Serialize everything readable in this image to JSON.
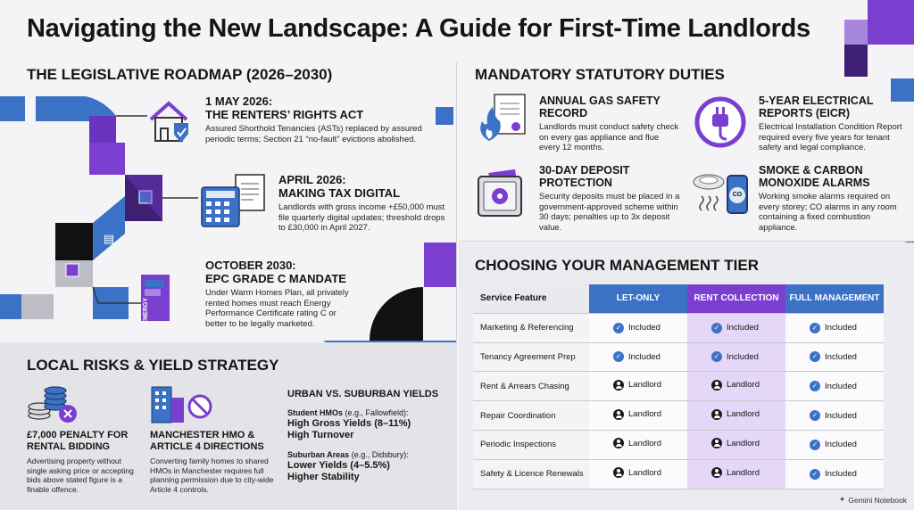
{
  "title": "Navigating the New Landscape: A Guide for First-Time Landlords",
  "roadmap": {
    "heading": "THE LEGISLATIVE ROADMAP (2026–2030)",
    "events": [
      {
        "title_line1": "1 MAY 2026:",
        "title_line2": "THE RENTERS’ RIGHTS ACT",
        "body": "Assured Shorthold Tenancies (ASTs) replaced by assured periodic terms; Section 21 “no-fault” evictions abolished.",
        "icon": "house-shield-icon"
      },
      {
        "title_line1": "APRIL 2026:",
        "title_line2": "MAKING TAX DIGITAL",
        "body": "Landlords with gross income +£50,000 must file quarterly digital updates; threshold drops to £30,000 in April 2027.",
        "icon": "calculator-document-icon"
      },
      {
        "title_line1": "OCTOBER 2030:",
        "title_line2": "EPC GRADE C MANDATE",
        "body": "Under Warm Homes Plan, all privately rented homes must reach Energy Performance Certificate rating C or better to be legally marketed.",
        "icon": "energy-meter-icon",
        "icon_label": "ENERGY"
      }
    ]
  },
  "duties": {
    "heading": "MANDATORY STATUTORY DUTIES",
    "items": [
      {
        "title": "ANNUAL GAS SAFETY RECORD",
        "body": "Landlords must conduct safety check on every gas appliance and flue every 12 months.",
        "icon": "flame-certificate-icon"
      },
      {
        "title": "5-YEAR ELECTRICAL REPORTS (EICR)",
        "body": "Electrical Installation Condition Report required every five years for tenant safety and legal compliance.",
        "icon": "plug-icon"
      },
      {
        "title": "30-DAY DEPOSIT PROTECTION",
        "body": "Security deposits must be placed in a government-approved scheme within 30 days; penalties up to 3x deposit value.",
        "icon": "safe-icon"
      },
      {
        "title": "SMOKE & CARBON MONOXIDE ALARMS",
        "body": "Working smoke alarms required on every storey; CO alarms in any room containing a fixed combustion appliance.",
        "icon": "smoke-alarm-icon",
        "icon_label": "CO"
      }
    ]
  },
  "risks": {
    "heading": "LOCAL RISKS & YIELD STRATEGY",
    "penalty": {
      "title": "£7,000 PENALTY FOR RENTAL BIDDING",
      "body": "Advertising property without single asking price or accepting bids above stated figure is a finable offence.",
      "icon": "coins-cancel-icon"
    },
    "hmo": {
      "title": "MANCHESTER HMO & ARTICLE 4 DIRECTIONS",
      "body": "Converting family homes to shared HMOs in Manchester requires full planning permission due to city-wide Article 4 controls.",
      "icon": "building-prohibited-icon"
    },
    "yields": {
      "heading": "URBAN VS. SUBURBAN YIELDS",
      "student_label": "Student HMOs",
      "student_example": "(e.g., Fallowfield):",
      "student_line1": "High Gross Yields (8–11%)",
      "student_line2": "High Turnover",
      "suburban_label": "Suburban Areas",
      "suburban_example": "(e.g., Didsbury):",
      "suburban_line1": "Lower Yields (4–5.5%)",
      "suburban_line2": "Higher Stability"
    }
  },
  "tiers": {
    "heading": "CHOOSING YOUR MANAGEMENT TIER",
    "columns": [
      "Service Feature",
      "LET-ONLY",
      "RENT COLLECTION",
      "FULL MANAGEMENT"
    ],
    "rows": [
      {
        "feature": "Marketing & Referencing",
        "values": [
          "Included",
          "Included",
          "Included"
        ]
      },
      {
        "feature": "Tenancy Agreement Prep",
        "values": [
          "Included",
          "Included",
          "Included"
        ]
      },
      {
        "feature": "Rent & Arrears Chasing",
        "values": [
          "Landlord",
          "Landlord",
          "Included"
        ]
      },
      {
        "feature": "Repair Coordination",
        "values": [
          "Landlord",
          "Landlord",
          "Included"
        ]
      },
      {
        "feature": "Periodic Inspections",
        "values": [
          "Landlord",
          "Landlord",
          "Included"
        ]
      },
      {
        "feature": "Safety & Licence Renewals",
        "values": [
          "Landlord",
          "Landlord",
          "Included"
        ]
      }
    ],
    "icons": {
      "Included": "check-circle-icon",
      "Landlord": "person-icon"
    }
  },
  "watermark": "Gemini Notebook",
  "colors": {
    "blue": "#3b72c6",
    "purple": "#7b3fd0",
    "dark": "#1b1b1b"
  }
}
